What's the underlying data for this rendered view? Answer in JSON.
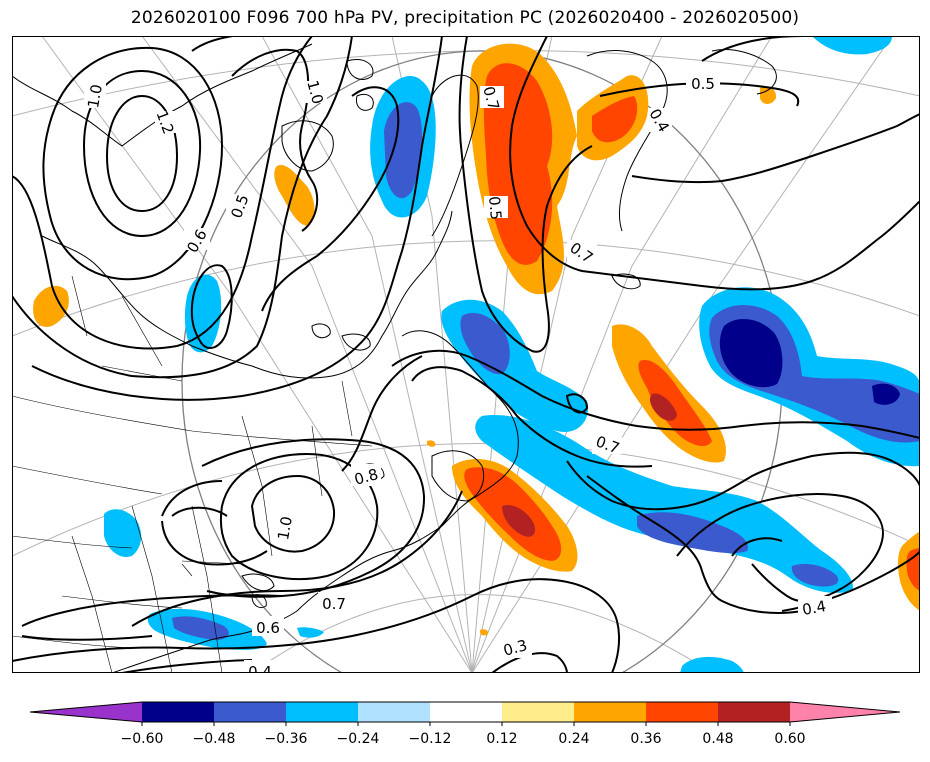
{
  "title": "2026020100 F096 700 hPa PV, precipitation PC (2026020400 - 2026020500)",
  "colorbar": {
    "colors": [
      "#9a33cc",
      "#00008b",
      "#3a5acd",
      "#00bfff",
      "#b0e2ff",
      "#ffffff",
      "#ffec8b",
      "#ffa500",
      "#ff4500",
      "#b22222",
      "#ff82ab"
    ],
    "tick_labels": [
      "−0.60",
      "−0.48",
      "−0.36",
      "−0.24",
      "−0.12",
      "0.12",
      "0.24",
      "0.36",
      "0.48",
      "0.60"
    ]
  },
  "contour_labels": [
    "1.0",
    "1.2",
    "0.5",
    "0.6",
    "1.0",
    "0.7",
    "0.5",
    "0.5",
    "0.4",
    "0.7",
    "0.7",
    "0.8",
    "1.0",
    "0.7",
    "0.6",
    "0.4",
    "0.3",
    "0.4"
  ]
}
